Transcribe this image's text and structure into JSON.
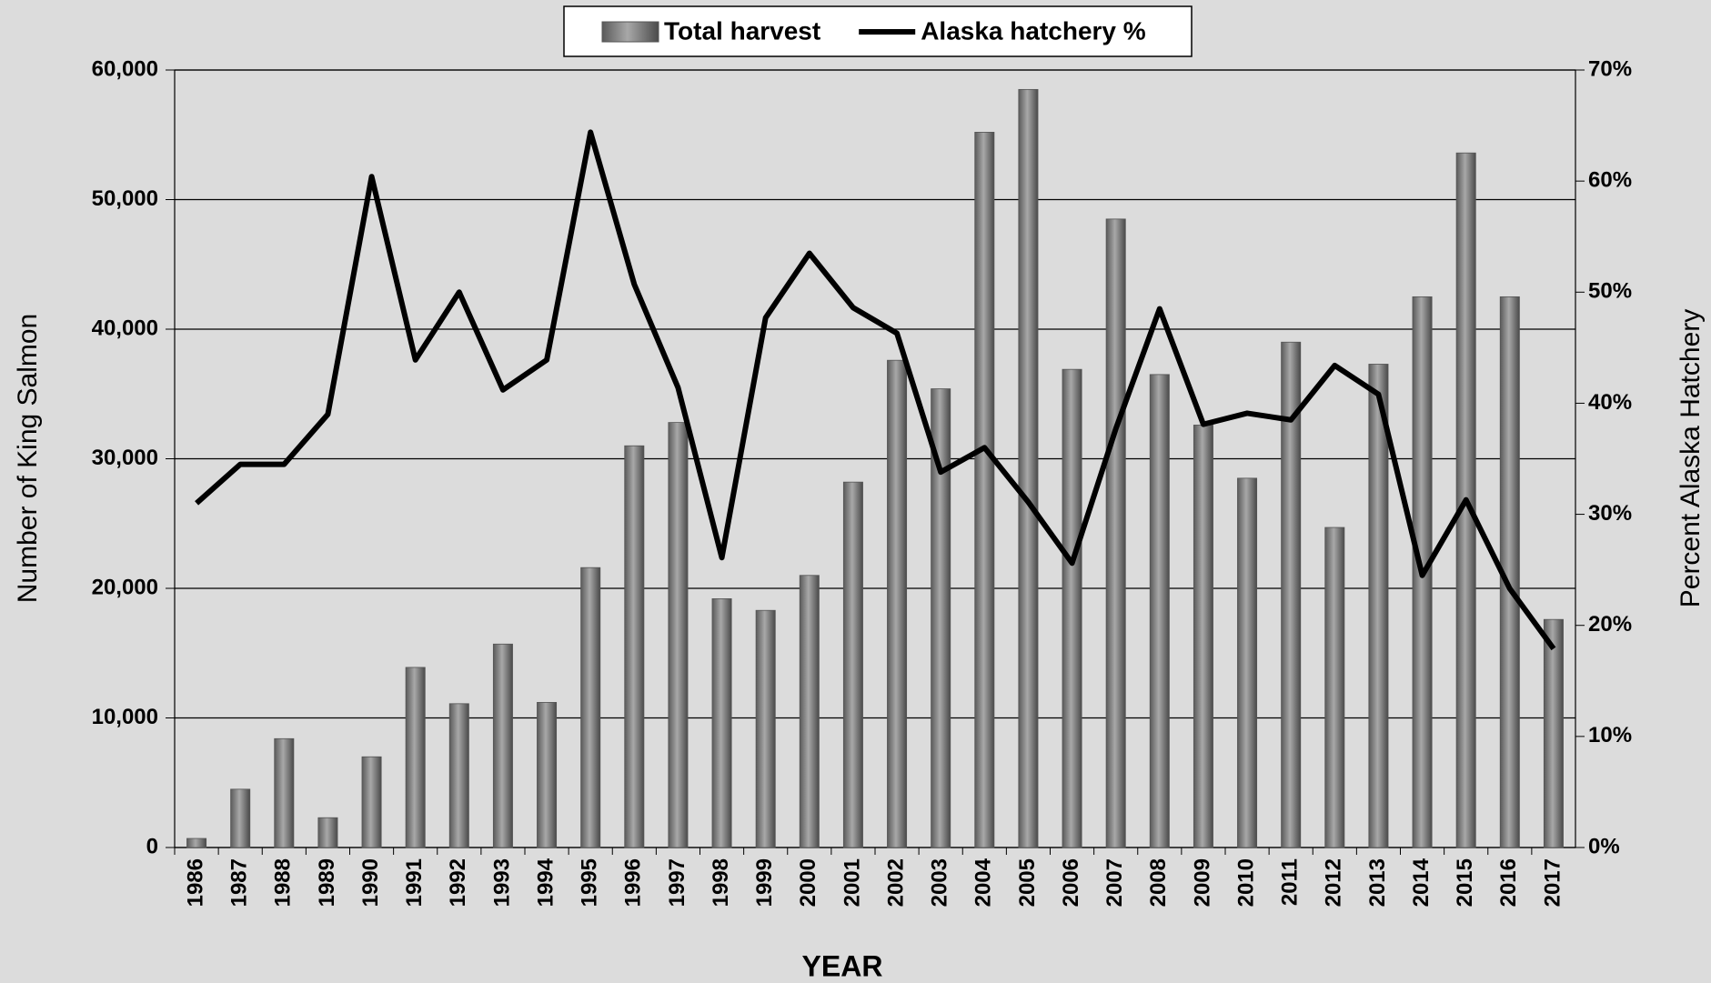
{
  "chart_data": {
    "type": "bar-line",
    "x_label": "YEAR",
    "y_label": "Number of King Salmon",
    "y2_label": "Percent Alaska Hatchery",
    "categories": [
      "1986",
      "1987",
      "1988",
      "1989",
      "1990",
      "1991",
      "1992",
      "1993",
      "1994",
      "1995",
      "1996",
      "1997",
      "1998",
      "1999",
      "2000",
      "2001",
      "2002",
      "2003",
      "2004",
      "2005",
      "2006",
      "2007",
      "2008",
      "2009",
      "2010",
      "2011",
      "2012",
      "2013",
      "2014",
      "2015",
      "2016",
      "2017"
    ],
    "series": [
      {
        "name": "Total harvest",
        "type": "bar",
        "color": "#808080",
        "values": [
          700,
          4500,
          8400,
          2300,
          7000,
          13900,
          11100,
          15700,
          11200,
          21600,
          31000,
          32800,
          19200,
          18300,
          21000,
          28200,
          37600,
          35400,
          55200,
          58500,
          36900,
          48500,
          36500,
          32600,
          28500,
          39000,
          24700,
          37300,
          42500,
          53600,
          42500,
          17600
        ]
      },
      {
        "name": "Alaska hatchery %",
        "type": "line",
        "axis": "y2",
        "color": "#000000",
        "values": [
          31.0,
          34.5,
          34.5,
          39.0,
          60.4,
          43.9,
          50.0,
          41.2,
          43.9,
          64.4,
          50.7,
          41.4,
          26.1,
          47.7,
          53.5,
          48.6,
          46.3,
          33.8,
          36.0,
          31.1,
          25.6,
          37.7,
          48.5,
          38.1,
          39.1,
          38.5,
          43.4,
          40.8,
          24.5,
          31.3,
          23.3,
          17.9
        ]
      }
    ],
    "ylim": [
      0,
      60000
    ],
    "yticks": [
      0,
      {
        "value": 10000,
        "label": "10,000"
      },
      {
        "value": 20000,
        "label": "20,000"
      },
      {
        "value": 30000,
        "label": "30,000"
      },
      {
        "value": 40000,
        "label": "40,000"
      },
      {
        "value": 50000,
        "label": "50,000"
      },
      {
        "value": 60000,
        "label": "60,000"
      }
    ],
    "y2lim": [
      0,
      70
    ],
    "y2ticks": [
      {
        "value": 0,
        "label": "0%"
      },
      {
        "value": 10,
        "label": "10%"
      },
      {
        "value": 20,
        "label": "20%"
      },
      {
        "value": 30,
        "label": "30%"
      },
      {
        "value": 40,
        "label": "40%"
      },
      {
        "value": 50,
        "label": "50%"
      },
      {
        "value": 60,
        "label": "60%"
      },
      {
        "value": 70,
        "label": "70%"
      }
    ],
    "grid": true,
    "legend": "top"
  }
}
